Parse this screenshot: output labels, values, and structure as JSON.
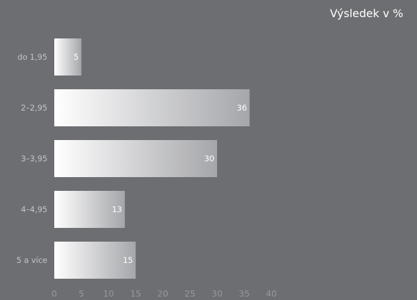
{
  "chart_data": {
    "type": "bar",
    "orientation": "horizontal",
    "title": "Výsledek v %",
    "categories": [
      "do 1,95",
      "2–2,95",
      "3–3,95",
      "4–4,95",
      "5 a více"
    ],
    "values": [
      5,
      36,
      30,
      13,
      15
    ],
    "xlim": [
      0,
      40
    ],
    "xticks": [
      0,
      5,
      10,
      15,
      20,
      25,
      30,
      35,
      40
    ],
    "xlabel": "",
    "ylabel": "",
    "grid": false,
    "legend": "none",
    "colors": {
      "background": "#6d6e72",
      "bar_gradient_start": "#ffffff",
      "bar_gradient_end": "#a5a6aa",
      "title": "#ffffff",
      "category_label": "#c4c5c9",
      "tick_label": "#97989c",
      "value_label": "#ffffff"
    }
  }
}
